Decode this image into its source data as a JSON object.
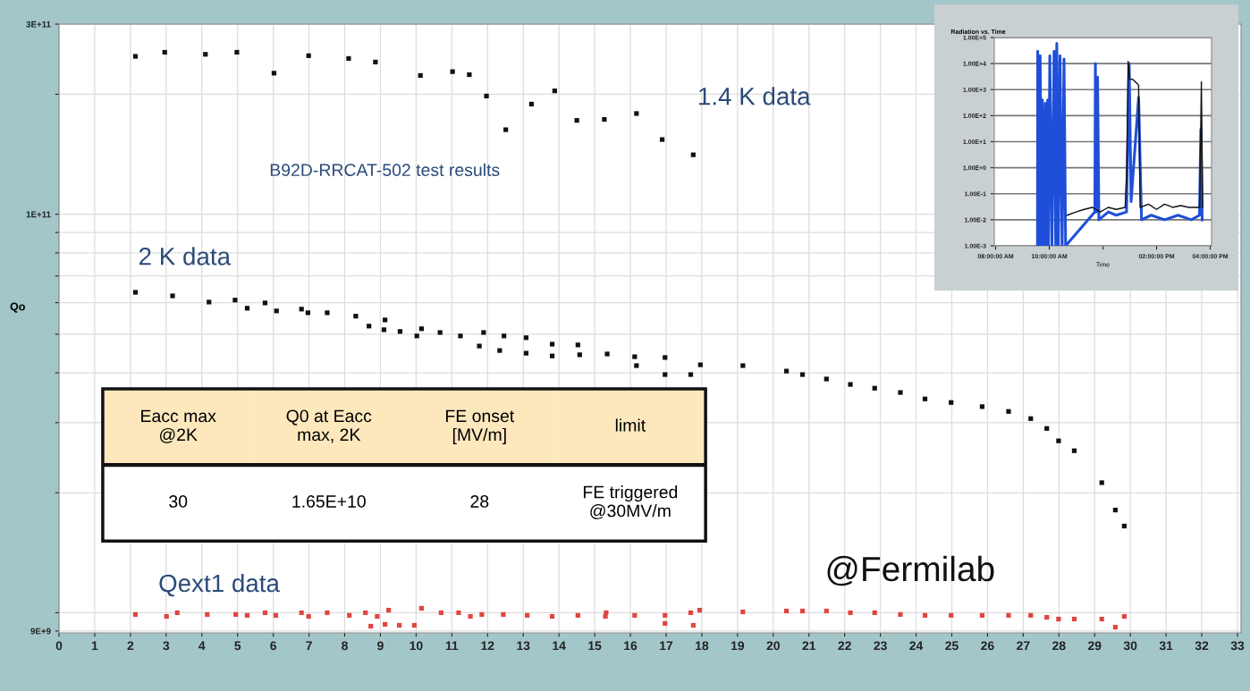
{
  "chart_data": [
    {
      "type": "scatter",
      "ylabel": "Qo",
      "log": "y",
      "grid": true,
      "marker": "square",
      "xlim": [
        0,
        33.1
      ],
      "xticks": [
        0,
        1,
        2,
        3,
        4,
        5,
        6,
        7,
        8,
        9,
        10,
        11,
        12,
        13,
        14,
        15,
        16,
        17,
        18,
        19,
        20,
        21,
        22,
        23,
        24,
        25,
        26,
        27,
        28,
        29,
        30,
        31,
        32,
        33
      ],
      "ylim": [
        8900000000.0,
        300000000000.0
      ],
      "yticks": [
        {
          "value": 300000000000.0,
          "label": "3E+11"
        },
        {
          "value": 200000000000.0,
          "label": null
        },
        {
          "value": 100000000000.0,
          "label": "1E+11"
        },
        {
          "value": 90000000000.0,
          "label": null
        },
        {
          "value": 80000000000.0,
          "label": null
        },
        {
          "value": 70000000000.0,
          "label": null
        },
        {
          "value": 60000000000.0,
          "label": null
        },
        {
          "value": 50000000000.0,
          "label": null
        },
        {
          "value": 40000000000.0,
          "label": null
        },
        {
          "value": 30000000000.0,
          "label": null
        },
        {
          "value": 20000000000.0,
          "label": null
        },
        {
          "value": 10000000000.0,
          "label": null
        },
        {
          "value": 9000000000.0,
          "label": "9E+9"
        }
      ],
      "series": [
        {
          "name": "1.4 K data",
          "color": "#111111",
          "x": [
            2.14,
            2.96,
            4.1,
            4.98,
            6.02,
            6.99,
            8.11,
            8.86,
            10.12,
            11.02,
            11.49,
            11.97,
            12.51,
            13.23,
            13.88,
            14.5,
            15.27,
            16.17,
            16.89,
            17.76
          ],
          "values": [
            249000000000.0,
            255000000000.0,
            252000000000.0,
            255000000000.0,
            226000000000.0,
            250000000000.0,
            246000000000.0,
            241000000000.0,
            223000000000.0,
            228000000000.0,
            224000000000.0,
            198000000000.0,
            163000000000.0,
            189000000000.0,
            204000000000.0,
            172000000000.0,
            173000000000.0,
            179000000000.0,
            154000000000.0,
            141000000000.0
          ]
        },
        {
          "name": "2 K data",
          "color": "#111111",
          "x": [
            2.14,
            3.18,
            4.2,
            4.93,
            5.27,
            5.77,
            6.09,
            6.79,
            6.97,
            7.51,
            8.31,
            8.68,
            9.13,
            9.1,
            9.55,
            10.02,
            10.15,
            10.67,
            11.24,
            11.77,
            11.89,
            12.34,
            12.46,
            13.08,
            13.08,
            13.81,
            13.81,
            14.53,
            14.58,
            15.35,
            16.12,
            16.17,
            16.97,
            16.97,
            17.69,
            17.96,
            19.15,
            20.37,
            20.82,
            21.49,
            22.16,
            22.84,
            23.56,
            24.25,
            24.98,
            25.85,
            26.59,
            27.21,
            27.66,
            27.99,
            28.43,
            29.2,
            29.58,
            29.83
          ],
          "values": [
            63700000000.0,
            62400000000.0,
            60200000000.0,
            60900000000.0,
            58100000000.0,
            59900000000.0,
            57200000000.0,
            57800000000.0,
            56600000000.0,
            56600000000.0,
            55500000000.0,
            52400000000.0,
            54300000000.0,
            51300000000.0,
            50800000000.0,
            49500000000.0,
            51600000000.0,
            50500000000.0,
            49500000000.0,
            46700000000.0,
            50500000000.0,
            45500000000.0,
            49500000000.0,
            49000000000.0,
            44800000000.0,
            47200000000.0,
            44100000000.0,
            47000000000.0,
            44400000000.0,
            44600000000.0,
            43900000000.0,
            41700000000.0,
            43700000000.0,
            39600000000.0,
            39600000000.0,
            41900000000.0,
            41700000000.0,
            40400000000.0,
            39600000000.0,
            38600000000.0,
            37400000000.0,
            36600000000.0,
            35700000000.0,
            34400000000.0,
            33700000000.0,
            32900000000.0,
            32000000000.0,
            30700000000.0,
            29000000000.0,
            27000000000.0,
            25500000000.0,
            21200000000.0,
            18100000000.0,
            16500000000.0
          ]
        },
        {
          "name": "Qext1 data",
          "color": "#e0453f",
          "x": [
            2.14,
            3.01,
            3.31,
            4.15,
            4.95,
            5.27,
            5.77,
            6.07,
            6.79,
            6.99,
            7.51,
            8.13,
            8.58,
            8.73,
            8.91,
            9.13,
            9.23,
            9.53,
            9.95,
            10.15,
            10.7,
            11.19,
            11.52,
            11.84,
            12.44,
            13.11,
            13.81,
            14.53,
            15.3,
            15.32,
            16.12,
            16.97,
            16.97,
            17.69,
            17.76,
            17.94,
            19.15,
            20.37,
            20.82,
            21.49,
            22.16,
            22.84,
            23.56,
            24.25,
            24.98,
            25.85,
            26.59,
            27.21,
            27.66,
            27.99,
            28.43,
            29.2,
            29.58,
            29.83
          ],
          "values": [
            9900000000.0,
            9790000000.0,
            10000000000.0,
            9900000000.0,
            9900000000.0,
            9850000000.0,
            10000000000.0,
            9850000000.0,
            10000000000.0,
            9790000000.0,
            10000000000.0,
            9850000000.0,
            10000000000.0,
            9250000000.0,
            9790000000.0,
            9350000000.0,
            10150000000.0,
            9300000000.0,
            9300000000.0,
            10260000000.0,
            10000000000.0,
            10000000000.0,
            9790000000.0,
            9900000000.0,
            9900000000.0,
            9850000000.0,
            9790000000.0,
            9850000000.0,
            9790000000.0,
            10000000000.0,
            9850000000.0,
            9850000000.0,
            9400000000.0,
            10000000000.0,
            9300000000.0,
            10150000000.0,
            10050000000.0,
            10100000000.0,
            10100000000.0,
            10100000000.0,
            10000000000.0,
            10000000000.0,
            9900000000.0,
            9850000000.0,
            9850000000.0,
            9850000000.0,
            9850000000.0,
            9850000000.0,
            9740000000.0,
            9640000000.0,
            9640000000.0,
            9640000000.0,
            9200000000.0,
            9790000000.0
          ]
        }
      ],
      "annotations": [
        "B92D-RRCAT-502 test results",
        "@Fermilab",
        "Eacc max\n@2K",
        "Q0 at Eacc\nmax, 2K",
        "FE onset\n[MV/m]",
        "limit",
        "30",
        "1.65E+10",
        "28",
        "FE triggered\n@30MV/m"
      ]
    },
    {
      "type": "line",
      "title": "Radiation vs. Time",
      "xlabel": "Time",
      "log": "y",
      "grid": "y",
      "xlim": [
        7.95,
        16.05
      ],
      "xticks": [
        {
          "value": 8,
          "label": "08:00:00 AM"
        },
        {
          "value": 10,
          "label": "10:00:00 AM"
        },
        {
          "value": 12,
          "label": null
        },
        {
          "value": 14,
          "label": "02:00:00 PM"
        },
        {
          "value": 16,
          "label": "04:00:00 PM"
        }
      ],
      "ylim": [
        0.001,
        100000
      ],
      "yticks": [
        {
          "value": 100000,
          "label": "1.00E+5"
        },
        {
          "value": 10000,
          "label": "1.00E+4"
        },
        {
          "value": 1000,
          "label": "1.00E+3"
        },
        {
          "value": 100,
          "label": "1.00E+2"
        },
        {
          "value": 10,
          "label": "1.00E+1"
        },
        {
          "value": 1,
          "label": "1.00E+0"
        },
        {
          "value": 0.1,
          "label": "1.00E-1"
        },
        {
          "value": 0.01,
          "label": "1.00E-2"
        },
        {
          "value": 0.001,
          "label": "1.00E-3"
        }
      ],
      "series": [
        {
          "color": "#1f4fd8",
          "x": [
            9.56,
            9.57,
            9.62,
            9.66,
            9.72,
            9.74,
            9.8,
            9.85,
            9.9,
            9.94,
            9.97,
            10.02,
            10.1,
            10.18,
            10.24,
            10.28,
            10.34,
            10.4,
            10.48,
            10.55,
            10.61,
            11.7,
            11.72,
            11.75,
            11.8,
            11.85,
            12.2,
            12.5,
            12.88,
            12.98,
            13.05,
            13.33,
            13.44,
            13.8,
            14.3,
            14.8,
            15.3,
            15.6,
            15.65,
            15.7
          ],
          "values": [
            0.001,
            30000,
            0.001,
            20000,
            0.001,
            400,
            0.001,
            300,
            0.001,
            400,
            0.001,
            20000,
            0.001,
            30000,
            0.001,
            60000,
            0.001,
            20000,
            0.001,
            15000,
            0.001,
            0.02,
            10000,
            0.02,
            3000,
            0.01,
            0.02,
            0.015,
            0.02,
            10000,
            0.05,
            500,
            0.01,
            0.015,
            0.01,
            0.015,
            0.01,
            0.015,
            30,
            0.01
          ]
        },
        {
          "color": "#111111",
          "x": [
            10.67,
            11.0,
            11.3,
            11.61,
            11.9,
            12.2,
            12.5,
            12.83,
            12.89,
            12.94,
            13.0,
            13.11,
            13.33,
            13.39,
            13.7,
            14.0,
            14.3,
            14.6,
            14.9,
            15.2,
            15.5,
            15.61,
            15.67,
            15.72
          ],
          "values": [
            0.015,
            0.02,
            0.025,
            0.03,
            0.02,
            0.03,
            0.025,
            0.03,
            1,
            12000,
            2500,
            2500,
            1500,
            0.03,
            0.04,
            0.025,
            0.04,
            0.03,
            0.035,
            0.03,
            0.03,
            0.03,
            2000,
            0.03
          ]
        }
      ]
    }
  ]
}
